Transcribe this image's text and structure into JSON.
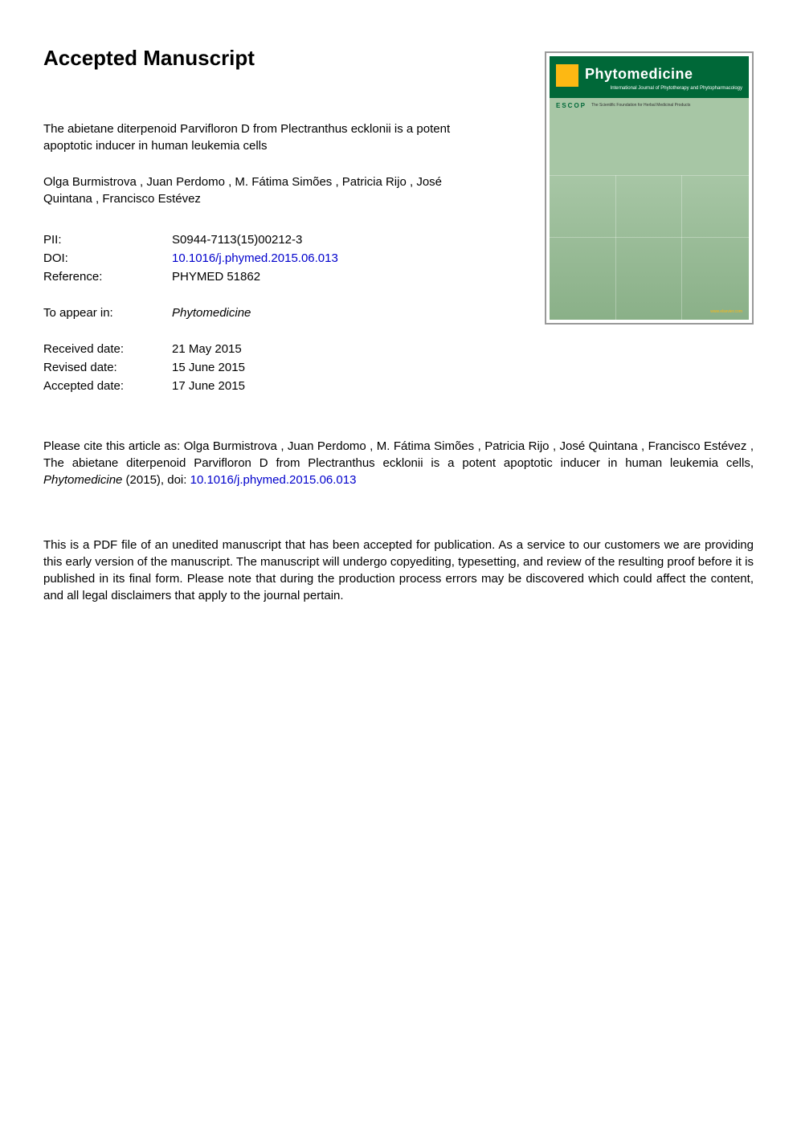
{
  "heading": "Accepted Manuscript",
  "title": "The abietane diterpenoid Parvifloron D from Plectranthus ecklonii is a potent apoptotic inducer in human leukemia cells",
  "authors": " Olga Burmistrova ,  Juan Perdomo ,   M. Fátima Simões ,  Patricia Rijo ,  José Quintana ,  Francisco Estévez",
  "metadata": {
    "pii": {
      "label": "PII:",
      "value": "S0944-7113(15)00212-3"
    },
    "doi": {
      "label": "DOI:",
      "value": "10.1016/j.phymed.2015.06.013",
      "link_color": "#0000cc"
    },
    "reference": {
      "label": "Reference:",
      "value": "PHYMED 51862"
    },
    "appear": {
      "label": "To appear in:",
      "value": "Phytomedicine"
    },
    "received": {
      "label": "Received date:",
      "value": "21 May 2015"
    },
    "revised": {
      "label": "Revised date:",
      "value": "15 June 2015"
    },
    "accepted": {
      "label": "Accepted date:",
      "value": "17 June 2015"
    }
  },
  "citation": {
    "prefix": "Please cite this article as:  Olga Burmistrova ,  Juan Perdomo ,  M. Fátima Simões ,  Patricia Rijo ,  José Quintana ,  Francisco Estévez , The abietane diterpenoid Parvifloron D from Plectranthus ecklonii is a potent apoptotic inducer in human leukemia cells, ",
    "journal": "Phytomedicine",
    "year": " (2015), doi: ",
    "doi_link": "10.1016/j.phymed.2015.06.013"
  },
  "disclaimer": "This is a PDF file of an unedited manuscript that has been accepted for publication. As a service to our customers we are providing this early version of the manuscript. The manuscript will undergo copyediting, typesetting, and review of the resulting proof before it is published in its final form. Please note that during the production process errors may be discovered which could affect the content, and all legal disclaimers that apply to the journal pertain.",
  "cover": {
    "journal_name": "Phytomedicine",
    "subtitle": "International Journal of Phytotherapy and Phytopharmacology",
    "escop_label": "ESCOP",
    "escop_text": "The Scientific Foundation for Herbal Medicinal Products",
    "banner_bg": "#006838",
    "banner_text": "#ffffff",
    "logo_bg": "#fdb813",
    "body_bg_top": "#a7c6a5",
    "body_bg_bottom": "#8ab088",
    "border_color": "#999999"
  },
  "colors": {
    "text": "#000000",
    "link": "#0000cc",
    "background": "#ffffff"
  },
  "fonts": {
    "body_size": 15,
    "heading_size": 26
  }
}
